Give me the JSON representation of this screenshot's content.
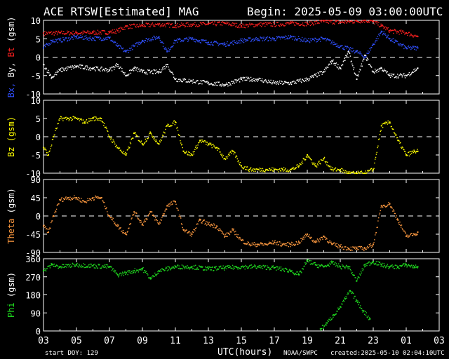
{
  "header": {
    "title": "ACE RTSW[Estimated] MAG",
    "begin": "Begin: 2025-05-09 03:00:00UTC"
  },
  "footer": {
    "start_doy": "start DOY:  129",
    "xlabel": "UTC(hours)",
    "source": "NOAA/SWPC",
    "created": "created:2025-05-10 02:04:10UTC"
  },
  "colors": {
    "bt": "#ff2020",
    "bx": "#ffffff",
    "by": "#3050ff",
    "bz": "#ffff00",
    "theta": "#ff9a40",
    "phi": "#20e020",
    "frame": "#ffffff",
    "background": "#000000"
  },
  "chart_data": [
    {
      "type": "scatter",
      "ylabel_parts": [
        {
          "text": "Bx,",
          "color": "#3050ff"
        },
        {
          "text": " By,",
          "color": "#ffffff"
        },
        {
          "text": " Bt",
          "color": "#ff2020"
        },
        {
          "text": " (gsm)",
          "color": "#ffffff"
        }
      ],
      "ylim": [
        -10,
        10
      ],
      "yticks": [
        10,
        5,
        0,
        -5,
        -10
      ],
      "zero_line": true,
      "xlim": [
        3,
        27
      ],
      "xticks": [
        "03",
        "05",
        "07",
        "09",
        "11",
        "13",
        "15",
        "17",
        "19",
        "21",
        "23",
        "01",
        "03"
      ],
      "series": [
        {
          "color": "#ff2020",
          "x": [
            3,
            4,
            5,
            6,
            7,
            7.5,
            8,
            9,
            10,
            11,
            12,
            13,
            14,
            15,
            16,
            17,
            18,
            19,
            20,
            21,
            22,
            22.5,
            23,
            23.5,
            24,
            25,
            25.7
          ],
          "y": [
            6.5,
            6.6,
            6.6,
            6.7,
            6.8,
            7.2,
            8.3,
            8.6,
            8.9,
            8.6,
            8.9,
            9.0,
            9.2,
            8.5,
            8.9,
            8.9,
            9.2,
            9.1,
            9.7,
            9.5,
            9.8,
            10,
            9.7,
            8.5,
            7.2,
            6.6,
            5.6
          ]
        },
        {
          "color": "#3050ff",
          "x": [
            3,
            3.5,
            4,
            5,
            6,
            7,
            7.5,
            8,
            8.5,
            9,
            10,
            10.5,
            11,
            12,
            13,
            14,
            15,
            16,
            17,
            18,
            19,
            20,
            21,
            22,
            22.5,
            23,
            23.5,
            24,
            25,
            25.7
          ],
          "y": [
            2.5,
            4.5,
            4.6,
            5.5,
            5.1,
            5.2,
            3,
            1.5,
            3,
            4.5,
            5.5,
            1.5,
            4.5,
            5,
            4,
            3.5,
            4.5,
            5,
            5,
            5.5,
            4.5,
            5,
            3,
            1.5,
            0,
            3.5,
            7,
            5,
            2.5,
            2.5
          ]
        },
        {
          "color": "#ffffff",
          "x": [
            3,
            3.5,
            4,
            5,
            6,
            7,
            7.5,
            8,
            8.5,
            9,
            10,
            10.5,
            11,
            12,
            13,
            14,
            15,
            16,
            17,
            18,
            19,
            20,
            20.5,
            21,
            21.5,
            22,
            22.5,
            23,
            23.5,
            24,
            25,
            25.7
          ],
          "y": [
            -2,
            -5.5,
            -3.5,
            -2.5,
            -3,
            -3.5,
            -2,
            -5,
            -3,
            -4,
            -4,
            -2,
            -6,
            -6.5,
            -7,
            -7.5,
            -6,
            -6,
            -7,
            -7,
            -6,
            -4,
            -1,
            -3,
            1.5,
            -6,
            0.5,
            -4,
            -3,
            -5,
            -5,
            -3
          ]
        }
      ]
    },
    {
      "type": "scatter",
      "ylabel_parts": [
        {
          "text": "Bz (gsm)",
          "color": "#ffff00"
        }
      ],
      "ylim": [
        -10,
        10
      ],
      "yticks": [
        10,
        5,
        0,
        -5,
        -10
      ],
      "zero_line": true,
      "xlim": [
        3,
        27
      ],
      "series": [
        {
          "color": "#ffff00",
          "x": [
            3,
            3.3,
            3.6,
            4,
            4.5,
            5,
            5.5,
            6,
            6.5,
            7,
            7.5,
            8,
            8.5,
            9,
            9.5,
            10,
            10.5,
            11,
            11.5,
            12,
            12.5,
            13,
            13.5,
            14,
            14.5,
            15,
            15.5,
            16,
            16.5,
            17,
            17.5,
            18,
            18.5,
            19,
            19.5,
            20,
            20.5,
            21,
            21.5,
            22,
            22.5,
            23,
            23.5,
            24,
            24.5,
            25,
            25.5,
            25.7
          ],
          "y": [
            -3,
            -5,
            0,
            5,
            5,
            5,
            4,
            5,
            5,
            0,
            -3,
            -5,
            1,
            -2,
            1,
            -2,
            3,
            4,
            -4,
            -5,
            -1,
            -2,
            -3,
            -6,
            -4,
            -8,
            -9,
            -9,
            -9,
            -9,
            -9,
            -9,
            -8,
            -5,
            -8,
            -6,
            -9,
            -9,
            -10,
            -10,
            -10,
            -9,
            3,
            4,
            -1,
            -5,
            -4,
            -4
          ]
        }
      ]
    },
    {
      "type": "scatter",
      "ylabel_parts": [
        {
          "text": "Theta",
          "color": "#ff9a40"
        },
        {
          "text": " (gsm)",
          "color": "#ffffff"
        }
      ],
      "ylim": [
        -90,
        90
      ],
      "yticks": [
        90,
        45,
        0,
        -45,
        -90
      ],
      "zero_line": true,
      "xlim": [
        3,
        27
      ],
      "series": [
        {
          "color": "#ff9a40",
          "x": [
            3,
            3.3,
            3.6,
            4,
            4.5,
            5,
            5.5,
            6,
            6.5,
            7,
            7.5,
            8,
            8.5,
            9,
            9.5,
            10,
            10.5,
            11,
            11.5,
            12,
            12.5,
            13,
            13.5,
            14,
            14.5,
            15,
            15.5,
            16,
            16.5,
            17,
            17.5,
            18,
            18.5,
            19,
            19.5,
            20,
            20.5,
            21,
            21.5,
            22,
            22.5,
            23,
            23.5,
            24,
            24.5,
            25,
            25.5,
            25.7
          ],
          "y": [
            -25,
            -40,
            0,
            40,
            45,
            45,
            35,
            45,
            45,
            0,
            -25,
            -45,
            10,
            -20,
            10,
            -20,
            25,
            35,
            -35,
            -45,
            -10,
            -20,
            -25,
            -50,
            -35,
            -60,
            -70,
            -70,
            -70,
            -65,
            -70,
            -70,
            -65,
            -45,
            -65,
            -50,
            -70,
            -75,
            -80,
            -80,
            -80,
            -70,
            25,
            30,
            -10,
            -50,
            -45,
            -40
          ]
        }
      ]
    },
    {
      "type": "scatter",
      "ylabel_parts": [
        {
          "text": "Phi",
          "color": "#20e020"
        },
        {
          "text": " (gsm)",
          "color": "#ffffff"
        }
      ],
      "ylim": [
        0,
        360
      ],
      "yticks": [
        360,
        270,
        180,
        90,
        0
      ],
      "zero_line": false,
      "xlim": [
        3,
        27
      ],
      "series": [
        {
          "color": "#20e020",
          "x": [
            3,
            3.5,
            4,
            5,
            6,
            7,
            7.5,
            8,
            8.5,
            9,
            9.5,
            10,
            11,
            12,
            13,
            14,
            15,
            16,
            17,
            18,
            18.5,
            19,
            19.5,
            20,
            20.5,
            21,
            21.5,
            22,
            22.5,
            23,
            23.5,
            24,
            24.5,
            25,
            25.5,
            25.7
          ],
          "y": [
            300,
            330,
            320,
            330,
            325,
            320,
            280,
            290,
            300,
            310,
            260,
            300,
            320,
            320,
            310,
            315,
            320,
            320,
            315,
            300,
            280,
            350,
            330,
            320,
            340,
            320,
            320,
            250,
            330,
            345,
            330,
            320,
            320,
            330,
            320,
            320
          ]
        },
        {
          "color": "#20e020",
          "x": [
            19.8,
            20.2,
            20.6,
            21,
            21.3,
            21.6,
            22,
            22.4,
            22.8
          ],
          "y": [
            10,
            40,
            80,
            120,
            160,
            200,
            150,
            100,
            60
          ]
        }
      ]
    }
  ]
}
